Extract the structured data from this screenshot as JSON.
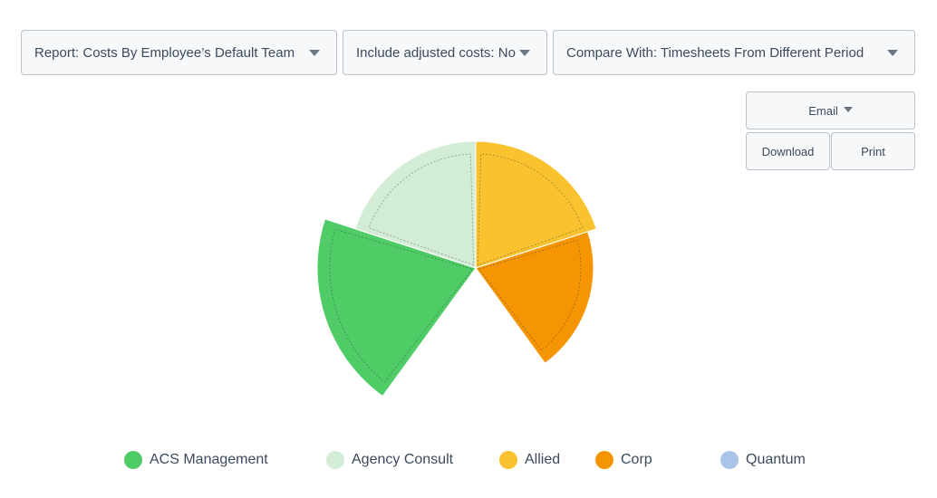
{
  "controls": {
    "report_label": "Report: Costs By Employee’s Default Team",
    "adjusted_label": "Include adjusted costs: No",
    "compare_label": "Compare With: Timesheets From Different Period"
  },
  "actions": {
    "email_label": "Email",
    "download_label": "Download",
    "print_label": "Print"
  },
  "chart_data": {
    "type": "pie",
    "subtype": "polar-area",
    "categories": [
      "ACS Management",
      "Agency Consult",
      "Allied",
      "Corp",
      "Quantum"
    ],
    "series": [
      {
        "values": [
          35,
          28,
          28,
          26,
          0
        ]
      }
    ],
    "colors": [
      "#4fcc65",
      "#d3ecd6",
      "#f9c22e",
      "#f69503",
      "#a9c4e8"
    ],
    "legend_position": "bottom",
    "title": ""
  }
}
